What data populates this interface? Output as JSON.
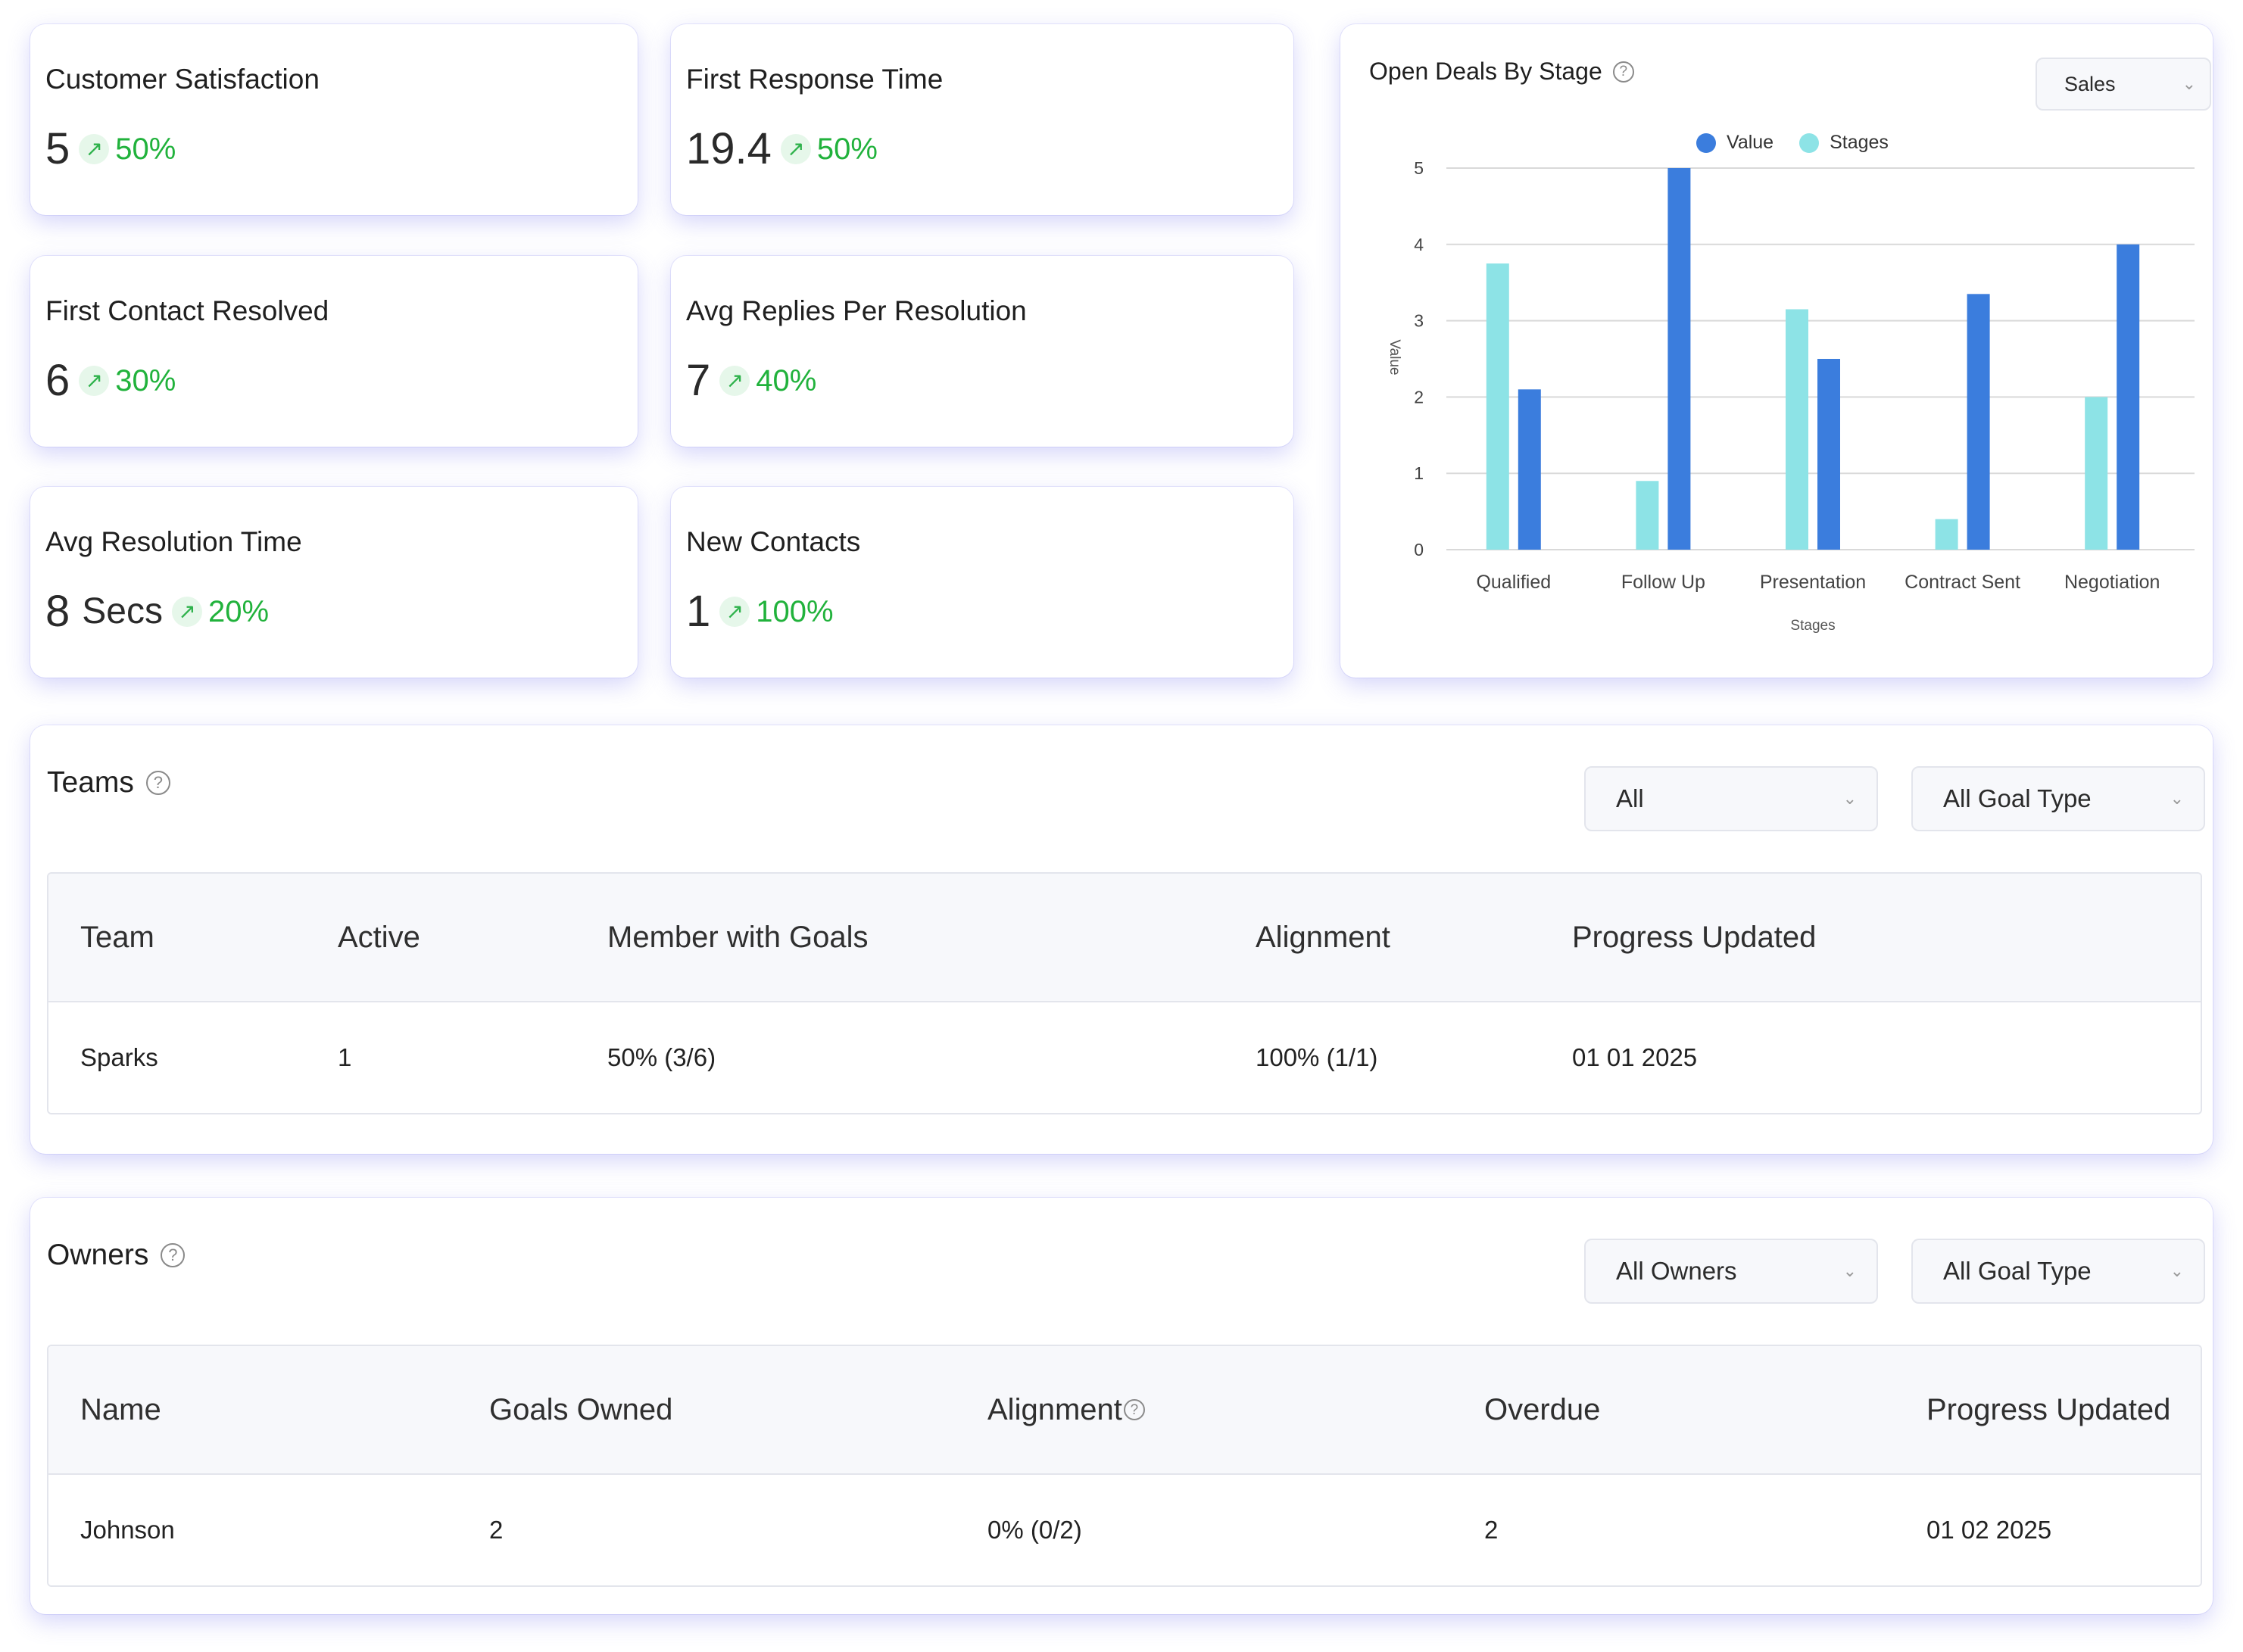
{
  "kpis": [
    {
      "title": "Customer Satisfaction",
      "value": "5",
      "unit": "",
      "change": "50%"
    },
    {
      "title": "First Response Time",
      "value": "19.4",
      "unit": "",
      "change": "50%"
    },
    {
      "title": "First Contact Resolved",
      "value": "6",
      "unit": "",
      "change": "30%"
    },
    {
      "title": "Avg Replies Per Resolution",
      "value": "7",
      "unit": "",
      "change": "40%"
    },
    {
      "title": "Avg Resolution Time",
      "value": "8",
      "unit": "Secs",
      "change": "20%"
    },
    {
      "title": "New Contacts",
      "value": "1",
      "unit": "",
      "change": "100%"
    }
  ],
  "trend_icon": "↗",
  "help_icon": "?",
  "chevron_icon": "⌄",
  "colors": {
    "value_series": "#3b7ddd",
    "stages_series": "#8de3e6",
    "trend_green": "#21b23c"
  },
  "deals_chart": {
    "title": "Open Deals By Stage",
    "pipeline_select": "Sales"
  },
  "chart_data": {
    "type": "bar",
    "title": "Open Deals By Stage",
    "categories": [
      "Qualified",
      "Follow Up",
      "Presentation",
      "Contract Sent",
      "Negotiation"
    ],
    "series": [
      {
        "name": "Stages",
        "values": [
          3.75,
          0.9,
          3.15,
          0.4,
          2.0
        ],
        "color": "#8de3e6"
      },
      {
        "name": "Value",
        "values": [
          2.1,
          5.0,
          2.5,
          3.35,
          4.0
        ],
        "color": "#3b7ddd"
      }
    ],
    "legend_order": [
      "Value",
      "Stages"
    ],
    "xlabel": "Stages",
    "ylabel": "Value",
    "yticks": [
      "0",
      "1",
      "2",
      "3",
      "4",
      "5"
    ],
    "ylim": [
      0,
      5
    ],
    "grid": true,
    "legend": "top-center"
  },
  "teams": {
    "title": "Teams",
    "filter": "All",
    "goal_type": "All Goal Type",
    "headers": [
      "Team",
      "Active",
      "Member with Goals",
      "Alignment",
      "Progress Updated"
    ],
    "rows": [
      [
        "Sparks",
        "1",
        "50% (3/6)",
        "100% (1/1)",
        "01 01 2025"
      ]
    ]
  },
  "owners": {
    "title": "Owners",
    "filter": "All Owners",
    "goal_type": "All Goal Type",
    "headers": [
      "Name",
      "Goals Owned",
      "Alignment",
      "Overdue",
      "Progress Updated"
    ],
    "rows": [
      [
        "Johnson",
        "2",
        "0% (0/2)",
        "2",
        "01 02 2025"
      ]
    ]
  }
}
